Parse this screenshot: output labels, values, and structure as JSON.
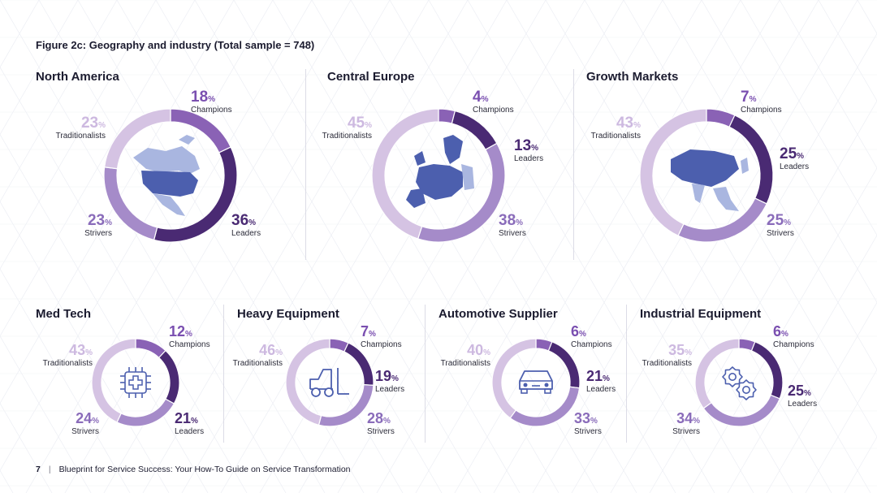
{
  "figure_title": "Figure 2c: Geography and industry  (Total sample = 748)",
  "colors": {
    "Champions": "#8a62b5",
    "Leaders": "#4a2a73",
    "Strivers": "#a58bc9",
    "Traditionalists": "#d5c3e3",
    "map_light": "#a9b6e0",
    "map_dark": "#4c5fae",
    "icon": "#4c5fae"
  },
  "footer": {
    "page": "7",
    "separator": "|",
    "text": "Blueprint for Service Success: Your How-To Guide on Service Transformation"
  },
  "chart_data": [
    {
      "type": "pie",
      "title": "North America",
      "center": "north-america-map",
      "categories": [
        "Champions",
        "Leaders",
        "Strivers",
        "Traditionalists"
      ],
      "values": [
        18,
        36,
        23,
        23
      ],
      "unit": "%"
    },
    {
      "type": "pie",
      "title": "Central Europe",
      "center": "europe-map",
      "categories": [
        "Champions",
        "Leaders",
        "Strivers",
        "Traditionalists"
      ],
      "values": [
        4,
        13,
        38,
        45
      ],
      "unit": "%"
    },
    {
      "type": "pie",
      "title": "Growth Markets",
      "center": "asia-map",
      "categories": [
        "Champions",
        "Leaders",
        "Strivers",
        "Traditionalists"
      ],
      "values": [
        7,
        25,
        25,
        43
      ],
      "unit": "%"
    },
    {
      "type": "pie",
      "title": "Med Tech",
      "center": "microchip-medical-icon",
      "categories": [
        "Champions",
        "Leaders",
        "Strivers",
        "Traditionalists"
      ],
      "values": [
        12,
        21,
        24,
        43
      ],
      "unit": "%"
    },
    {
      "type": "pie",
      "title": "Heavy Equipment",
      "center": "forklift-icon",
      "categories": [
        "Champions",
        "Leaders",
        "Strivers",
        "Traditionalists"
      ],
      "values": [
        7,
        19,
        28,
        46
      ],
      "unit": "%"
    },
    {
      "type": "pie",
      "title": "Automotive Supplier",
      "center": "car-icon",
      "categories": [
        "Champions",
        "Leaders",
        "Strivers",
        "Traditionalists"
      ],
      "values": [
        6,
        21,
        33,
        40
      ],
      "unit": "%"
    },
    {
      "type": "pie",
      "title": "Industrial Equipment",
      "center": "gears-icon",
      "categories": [
        "Champions",
        "Leaders",
        "Strivers",
        "Traditionalists"
      ],
      "values": [
        6,
        25,
        34,
        35
      ],
      "unit": "%"
    }
  ]
}
